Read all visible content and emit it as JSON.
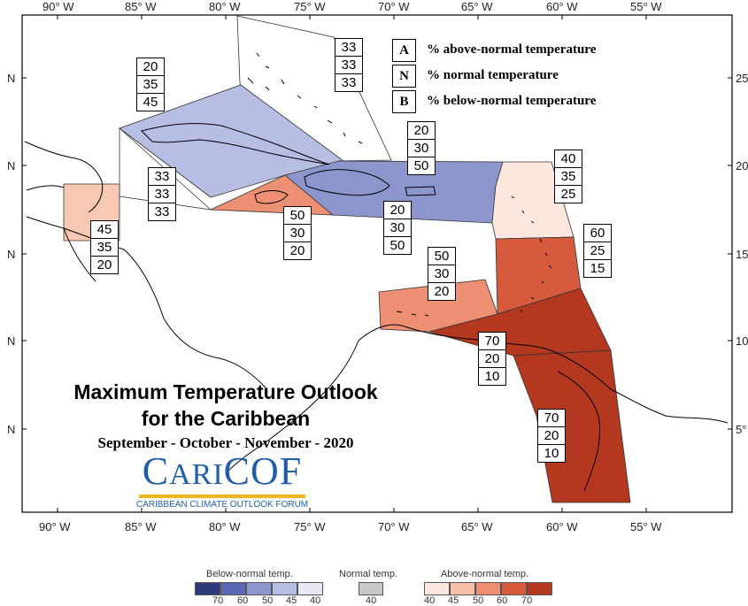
{
  "axes": {
    "lon_labels": [
      "90° W",
      "85° W",
      "80° W",
      "75° W",
      "70° W",
      "65° W",
      "60° W",
      "55° W"
    ],
    "lat_labels_left": [
      "N",
      "N",
      "N",
      "N",
      "N"
    ],
    "lat_labels_right": [
      "25",
      "20",
      "15",
      "10",
      "5°"
    ]
  },
  "legend": {
    "A": {
      "letter": "A",
      "text": "% above-normal temperature"
    },
    "N": {
      "letter": "N",
      "text": "% normal temperature"
    },
    "B": {
      "letter": "B",
      "text": "% below-normal temperature"
    }
  },
  "title": {
    "line1": "Maximum Temperature Outlook",
    "line2": "for the Caribbean",
    "season": "September - October - November - 2020"
  },
  "logo": {
    "name_big1": "C",
    "name_small1": "ARI",
    "name_big2": "COF",
    "subtitle": "CARIBBEAN CLIMATE OUTLOOK FORUM"
  },
  "scale": {
    "below_label": "Below-normal temp.",
    "normal_label": "Normal temp.",
    "above_label": "Above-normal temp.",
    "below_ticks": [
      "70",
      "60",
      "50",
      "45",
      "40"
    ],
    "normal_tick": "40",
    "above_ticks": [
      "40",
      "45",
      "50",
      "60",
      "70"
    ],
    "below_colors": [
      "#2f3a7a",
      "#5a67b3",
      "#8c95cc",
      "#b8bde3",
      "#e6e8f6"
    ],
    "normal_color": "#c8c8c8",
    "above_colors": [
      "#fde8e0",
      "#f7bfa8",
      "#ec8f72",
      "#d65a3e",
      "#b3381f"
    ]
  },
  "regions": [
    {
      "id": "bahamas",
      "probs": [
        "33",
        "33",
        "33"
      ]
    },
    {
      "id": "cuba",
      "probs": [
        "20",
        "35",
        "45"
      ]
    },
    {
      "id": "western-caribbean",
      "probs": [
        "33",
        "33",
        "33"
      ]
    },
    {
      "id": "belize",
      "probs": [
        "45",
        "35",
        "20"
      ]
    },
    {
      "id": "jamaica",
      "probs": [
        "50",
        "30",
        "20"
      ]
    },
    {
      "id": "hispaniola-pr-north",
      "probs": [
        "20",
        "30",
        "50"
      ]
    },
    {
      "id": "hispaniola-pr-south",
      "probs": [
        "20",
        "30",
        "50"
      ]
    },
    {
      "id": "leeward-islands",
      "probs": [
        "40",
        "35",
        "25"
      ]
    },
    {
      "id": "windward-islands",
      "probs": [
        "60",
        "25",
        "15"
      ]
    },
    {
      "id": "abc-islands",
      "probs": [
        "50",
        "30",
        "20"
      ]
    },
    {
      "id": "trinidad",
      "probs": [
        "70",
        "20",
        "10"
      ]
    },
    {
      "id": "guianas",
      "probs": [
        "70",
        "20",
        "10"
      ]
    }
  ]
}
